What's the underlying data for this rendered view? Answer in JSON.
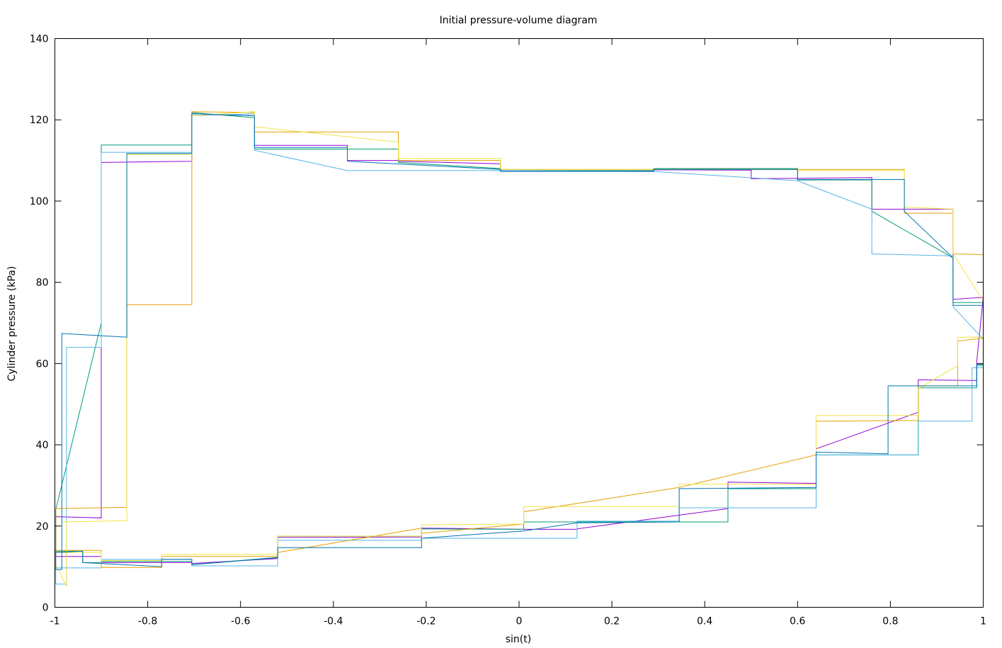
{
  "chart_data": {
    "type": "line",
    "title": "Initial pressure-volume diagram",
    "xlabel": "sin(t)",
    "ylabel": "Cylinder pressure (kPa)",
    "xlim": [
      -1,
      1
    ],
    "ylim": [
      0,
      140
    ],
    "grid": false,
    "legend": "none",
    "x_ticks": [
      {
        "value": -1,
        "label": "-1"
      },
      {
        "value": -0.8,
        "label": "-0.8"
      },
      {
        "value": -0.6,
        "label": "-0.6"
      },
      {
        "value": -0.4,
        "label": "-0.4"
      },
      {
        "value": -0.2,
        "label": "-0.2"
      },
      {
        "value": 0,
        "label": "0"
      },
      {
        "value": 0.2,
        "label": "0.2"
      },
      {
        "value": 0.4,
        "label": "0.4"
      },
      {
        "value": 0.6,
        "label": "0.6"
      },
      {
        "value": 0.8,
        "label": "0.8"
      },
      {
        "value": 1,
        "label": "1"
      }
    ],
    "y_ticks": [
      {
        "value": 0,
        "label": "0"
      },
      {
        "value": 20,
        "label": "20"
      },
      {
        "value": 40,
        "label": "40"
      },
      {
        "value": 60,
        "label": "60"
      },
      {
        "value": 80,
        "label": "80"
      },
      {
        "value": 100,
        "label": "100"
      },
      {
        "value": 120,
        "label": "120"
      },
      {
        "value": 140,
        "label": "140"
      }
    ],
    "series": [
      {
        "color": "#9400d3",
        "points": [
          [
            -0.998,
            13.2
          ],
          [
            -0.998,
            22.3
          ],
          [
            -0.9,
            22.0
          ],
          [
            -0.9,
            109.5
          ],
          [
            -0.705,
            109.8
          ],
          [
            -0.705,
            121.5
          ],
          [
            -0.57,
            121.0
          ],
          [
            -0.57,
            113.7
          ],
          [
            -0.37,
            113.7
          ],
          [
            -0.37,
            110.0
          ],
          [
            -0.26,
            110.0
          ],
          [
            -0.26,
            109.8
          ],
          [
            -0.04,
            109.2
          ],
          [
            -0.04,
            107.5
          ],
          [
            0.29,
            107.5
          ],
          [
            0.29,
            107.7
          ],
          [
            0.5,
            107.6
          ],
          [
            0.5,
            105.5
          ],
          [
            0.76,
            105.8
          ],
          [
            0.76,
            98.0
          ],
          [
            0.83,
            98.0
          ],
          [
            0.83,
            98.0
          ],
          [
            0.935,
            98.0
          ],
          [
            0.935,
            75.8
          ],
          [
            1.0,
            76.3
          ],
          [
            0.986,
            60.5
          ],
          [
            0.986,
            55.8
          ],
          [
            0.86,
            56.0
          ],
          [
            0.86,
            48.0
          ],
          [
            0.64,
            39.0
          ],
          [
            0.64,
            30.5
          ],
          [
            0.45,
            30.8
          ],
          [
            0.45,
            24.3
          ],
          [
            0.125,
            19.3
          ],
          [
            0.125,
            19.2
          ],
          [
            0.01,
            19.2
          ],
          [
            -0.21,
            19.5
          ],
          [
            -0.21,
            17.3
          ],
          [
            -0.52,
            17.2
          ],
          [
            -0.52,
            12.0
          ],
          [
            -0.705,
            10.8
          ],
          [
            -0.705,
            11.0
          ],
          [
            -0.9,
            11.0
          ],
          [
            -0.9,
            12.5
          ],
          [
            -0.998,
            12.5
          ],
          [
            -0.998,
            13.2
          ]
        ]
      },
      {
        "color": "#009e73",
        "points": [
          [
            -0.998,
            24.0
          ],
          [
            -0.9,
            70.0
          ],
          [
            -0.9,
            113.8
          ],
          [
            -0.705,
            113.8
          ],
          [
            -0.705,
            121.8
          ],
          [
            -0.57,
            120.5
          ],
          [
            -0.57,
            112.8
          ],
          [
            -0.26,
            112.8
          ],
          [
            -0.26,
            109.5
          ],
          [
            -0.04,
            108.0
          ],
          [
            -0.04,
            107.5
          ],
          [
            0.29,
            107.5
          ],
          [
            0.29,
            108.0
          ],
          [
            0.6,
            108.0
          ],
          [
            0.6,
            105.2
          ],
          [
            0.76,
            105.2
          ],
          [
            0.76,
            97.5
          ],
          [
            0.935,
            86.0
          ],
          [
            0.935,
            75.0
          ],
          [
            1.0,
            75.0
          ],
          [
            1.0,
            59.5
          ],
          [
            0.986,
            59.5
          ],
          [
            0.986,
            54.0
          ],
          [
            0.86,
            54.0
          ],
          [
            0.86,
            37.5
          ],
          [
            0.64,
            37.5
          ],
          [
            0.64,
            29.2
          ],
          [
            0.45,
            29.2
          ],
          [
            0.45,
            21.0
          ],
          [
            0.125,
            21.0
          ],
          [
            0.01,
            21.0
          ],
          [
            0.01,
            19.2
          ],
          [
            -0.21,
            19.3
          ],
          [
            -0.21,
            17.5
          ],
          [
            -0.52,
            17.5
          ],
          [
            -0.52,
            12.3
          ],
          [
            -0.705,
            10.5
          ],
          [
            -0.705,
            11.3
          ],
          [
            -0.9,
            11.3
          ],
          [
            -0.9,
            11.0
          ],
          [
            -0.94,
            11.0
          ],
          [
            -0.94,
            13.8
          ],
          [
            -0.998,
            13.8
          ],
          [
            -0.998,
            24.0
          ]
        ]
      },
      {
        "color": "#56b4e9",
        "points": [
          [
            -0.975,
            9.8
          ],
          [
            -0.975,
            64.0
          ],
          [
            -0.9,
            64.0
          ],
          [
            -0.9,
            112.0
          ],
          [
            -0.705,
            112.0
          ],
          [
            -0.705,
            121.0
          ],
          [
            -0.57,
            121.5
          ],
          [
            -0.57,
            112.5
          ],
          [
            -0.37,
            107.5
          ],
          [
            -0.04,
            107.5
          ],
          [
            0.29,
            107.3
          ],
          [
            0.6,
            105.0
          ],
          [
            0.76,
            98.0
          ],
          [
            0.76,
            87.0
          ],
          [
            0.935,
            86.5
          ],
          [
            0.935,
            74.0
          ],
          [
            1.0,
            66.0
          ],
          [
            1.0,
            59.0
          ],
          [
            0.976,
            59.0
          ],
          [
            0.976,
            45.8
          ],
          [
            0.86,
            45.8
          ],
          [
            0.86,
            37.5
          ],
          [
            0.64,
            37.5
          ],
          [
            0.64,
            24.5
          ],
          [
            0.345,
            24.5
          ],
          [
            0.345,
            21.2
          ],
          [
            0.125,
            21.2
          ],
          [
            0.125,
            17.0
          ],
          [
            -0.21,
            17.0
          ],
          [
            -0.21,
            16.5
          ],
          [
            -0.52,
            16.5
          ],
          [
            -0.52,
            10.2
          ],
          [
            -0.705,
            10.2
          ],
          [
            -0.705,
            11.8
          ],
          [
            -0.9,
            11.8
          ],
          [
            -0.9,
            9.7
          ],
          [
            -0.998,
            9.7
          ],
          [
            -0.998,
            5.7
          ],
          [
            -0.975,
            5.7
          ],
          [
            -0.975,
            9.8
          ]
        ]
      },
      {
        "color": "#e69f00",
        "points": [
          [
            -0.998,
            14.0
          ],
          [
            -0.998,
            24.3
          ],
          [
            -0.845,
            24.6
          ],
          [
            -0.845,
            74.5
          ],
          [
            -0.705,
            74.5
          ],
          [
            -0.705,
            122.0
          ],
          [
            -0.57,
            121.8
          ],
          [
            -0.57,
            117.0
          ],
          [
            -0.26,
            117.0
          ],
          [
            -0.26,
            110.0
          ],
          [
            -0.04,
            110.0
          ],
          [
            -0.04,
            107.8
          ],
          [
            0.29,
            107.8
          ],
          [
            0.29,
            107.8
          ],
          [
            0.83,
            107.8
          ],
          [
            0.83,
            97.0
          ],
          [
            0.935,
            97.0
          ],
          [
            0.935,
            87.0
          ],
          [
            1.0,
            86.8
          ],
          [
            1.0,
            66.3
          ],
          [
            0.945,
            65.5
          ],
          [
            0.945,
            54.5
          ],
          [
            0.86,
            54.5
          ],
          [
            0.86,
            46.0
          ],
          [
            0.64,
            45.8
          ],
          [
            0.64,
            37.5
          ],
          [
            0.345,
            29.5
          ],
          [
            0.345,
            29.5
          ],
          [
            0.01,
            23.5
          ],
          [
            0.01,
            20.5
          ],
          [
            -0.21,
            18.2
          ],
          [
            -0.21,
            19.5
          ],
          [
            -0.52,
            13.5
          ],
          [
            -0.52,
            12.5
          ],
          [
            -0.77,
            12.5
          ],
          [
            -0.77,
            9.8
          ],
          [
            -0.9,
            9.8
          ],
          [
            -0.9,
            14.0
          ],
          [
            -0.998,
            14.0
          ]
        ]
      },
      {
        "color": "#f0e442",
        "points": [
          [
            -0.985,
            21.0
          ],
          [
            -0.845,
            21.3
          ],
          [
            -0.845,
            111.5
          ],
          [
            -0.705,
            111.5
          ],
          [
            -0.705,
            121.0
          ],
          [
            -0.57,
            122.0
          ],
          [
            -0.57,
            118.3
          ],
          [
            -0.26,
            114.5
          ],
          [
            -0.26,
            110.5
          ],
          [
            -0.04,
            110.5
          ],
          [
            -0.04,
            107.8
          ],
          [
            0.29,
            107.8
          ],
          [
            0.6,
            107.8
          ],
          [
            0.6,
            107.5
          ],
          [
            0.83,
            107.5
          ],
          [
            0.83,
            98.5
          ],
          [
            0.935,
            98.0
          ],
          [
            0.935,
            87.0
          ],
          [
            1.0,
            75.5
          ],
          [
            1.0,
            66.5
          ],
          [
            0.945,
            66.5
          ],
          [
            0.945,
            59.5
          ],
          [
            0.86,
            53.8
          ],
          [
            0.86,
            47.2
          ],
          [
            0.64,
            47.2
          ],
          [
            0.64,
            30.3
          ],
          [
            0.345,
            30.3
          ],
          [
            0.345,
            24.8
          ],
          [
            0.01,
            24.8
          ],
          [
            0.01,
            20.5
          ],
          [
            -0.21,
            20.3
          ],
          [
            -0.21,
            17.5
          ],
          [
            -0.52,
            17.5
          ],
          [
            -0.52,
            13.0
          ],
          [
            -0.77,
            13.0
          ],
          [
            -0.77,
            11.5
          ],
          [
            -0.9,
            11.5
          ],
          [
            -0.9,
            13.5
          ],
          [
            -0.998,
            13.5
          ],
          [
            -0.998,
            10.5
          ],
          [
            -0.975,
            5.2
          ],
          [
            -0.975,
            21.0
          ],
          [
            -0.985,
            21.0
          ]
        ]
      },
      {
        "color": "#0072b2",
        "points": [
          [
            -0.998,
            9.3
          ],
          [
            -0.985,
            9.3
          ],
          [
            -0.985,
            67.4
          ],
          [
            -0.845,
            66.5
          ],
          [
            -0.845,
            111.7
          ],
          [
            -0.705,
            111.7
          ],
          [
            -0.705,
            121.5
          ],
          [
            -0.57,
            121.0
          ],
          [
            -0.57,
            113.2
          ],
          [
            -0.37,
            113.2
          ],
          [
            -0.37,
            109.8
          ],
          [
            -0.04,
            107.8
          ],
          [
            -0.04,
            107.3
          ],
          [
            0.29,
            107.3
          ],
          [
            0.29,
            107.8
          ],
          [
            0.6,
            107.8
          ],
          [
            0.6,
            105.3
          ],
          [
            0.83,
            105.3
          ],
          [
            0.83,
            97.5
          ],
          [
            0.935,
            86.0
          ],
          [
            0.935,
            74.3
          ],
          [
            1.0,
            74.3
          ],
          [
            1.0,
            59.8
          ],
          [
            0.986,
            59.8
          ],
          [
            0.986,
            54.5
          ],
          [
            0.795,
            54.5
          ],
          [
            0.795,
            48.0
          ],
          [
            0.795,
            37.8
          ],
          [
            0.64,
            38.2
          ],
          [
            0.64,
            29.5
          ],
          [
            0.345,
            29.2
          ],
          [
            0.345,
            21.0
          ],
          [
            0.125,
            20.8
          ],
          [
            0.01,
            18.8
          ],
          [
            -0.21,
            17.0
          ],
          [
            -0.21,
            14.7
          ],
          [
            -0.52,
            14.7
          ],
          [
            -0.52,
            12.2
          ],
          [
            -0.705,
            10.5
          ],
          [
            -0.705,
            11.8
          ],
          [
            -0.77,
            11.8
          ],
          [
            -0.77,
            10.0
          ],
          [
            -0.94,
            11.0
          ],
          [
            -0.94,
            13.8
          ],
          [
            -0.998,
            13.5
          ],
          [
            -0.998,
            9.3
          ]
        ]
      }
    ]
  }
}
